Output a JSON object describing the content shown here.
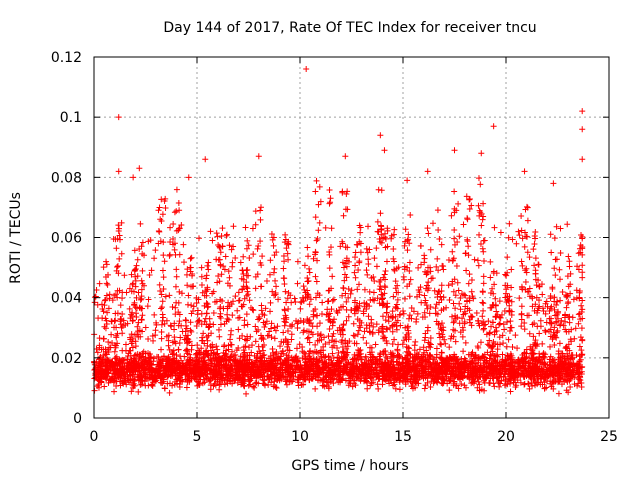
{
  "chart_data": {
    "type": "scatter",
    "title": "Day 144 of 2017, Rate Of TEC Index for receiver tncu",
    "xlabel": "GPS time / hours",
    "ylabel": "ROTI / TECUs",
    "xlim": [
      0,
      25
    ],
    "ylim": [
      0,
      0.12
    ],
    "x_ticks": [
      0,
      5,
      10,
      15,
      20,
      25
    ],
    "y_ticks": [
      0,
      0.02,
      0.04,
      0.06,
      0.08,
      0.1,
      0.12
    ],
    "x_tick_labels": [
      "0",
      "5",
      "10",
      "15",
      "20",
      "25"
    ],
    "y_tick_labels": [
      "0",
      "0.02",
      "0.04",
      "0.06",
      "0.08",
      "0.1",
      "0.12"
    ],
    "grid": true,
    "marker": "+",
    "color": "#ff0000",
    "series": [
      {
        "name": "ROTI",
        "x_range": [
          0,
          23.7
        ],
        "baseline_range": [
          0.005,
          0.03
        ],
        "notable_points": [
          {
            "x": 10.3,
            "y": 0.116
          },
          {
            "x": 23.7,
            "y": 0.102
          },
          {
            "x": 1.2,
            "y": 0.1
          },
          {
            "x": 19.4,
            "y": 0.097
          },
          {
            "x": 13.9,
            "y": 0.094
          },
          {
            "x": 23.7,
            "y": 0.096
          },
          {
            "x": 17.5,
            "y": 0.089
          },
          {
            "x": 18.8,
            "y": 0.088
          },
          {
            "x": 8.0,
            "y": 0.087
          },
          {
            "x": 12.2,
            "y": 0.087
          },
          {
            "x": 5.4,
            "y": 0.086
          },
          {
            "x": 23.7,
            "y": 0.086
          },
          {
            "x": 14.1,
            "y": 0.089
          },
          {
            "x": 16.2,
            "y": 0.082
          },
          {
            "x": 20.9,
            "y": 0.082
          },
          {
            "x": 1.2,
            "y": 0.082
          },
          {
            "x": 1.9,
            "y": 0.08
          },
          {
            "x": 2.2,
            "y": 0.083
          },
          {
            "x": 4.6,
            "y": 0.08
          },
          {
            "x": 15.2,
            "y": 0.079
          },
          {
            "x": 22.3,
            "y": 0.078
          }
        ]
      }
    ]
  }
}
